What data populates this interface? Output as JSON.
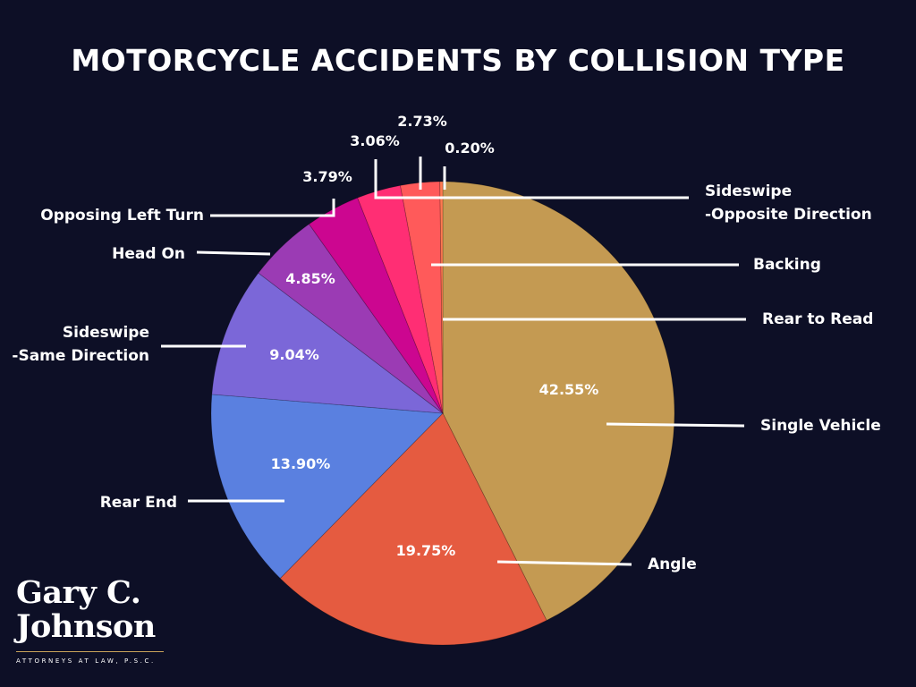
{
  "chart_data": {
    "type": "pie",
    "title": "MOTORCYCLE ACCIDENTS BY COLLISION TYPE",
    "start_angle_deg": 0,
    "direction": "clockwise",
    "slices": [
      {
        "label": "Single Vehicle",
        "value": 42.55,
        "value_label": "42.55%",
        "color": "#c49a52"
      },
      {
        "label": "Angle",
        "value": 19.75,
        "value_label": "19.75%",
        "color": "#e55b40"
      },
      {
        "label": "Rear End",
        "value": 13.9,
        "value_label": "13.90%",
        "color": "#5a80e0"
      },
      {
        "label": "Sideswipe\n-Same Direction",
        "value": 9.04,
        "value_label": "9.04%",
        "color": "#7b67d8"
      },
      {
        "label": "Head On",
        "value": 4.85,
        "value_label": "4.85%",
        "color": "#9b3bb4"
      },
      {
        "label": "Opposing Left Turn",
        "value": 3.79,
        "value_label": "3.79%",
        "color": "#cc0690"
      },
      {
        "label": "Sideswipe\n-Opposite Direction",
        "value": 3.06,
        "value_label": "3.06%",
        "color": "#ff2e74"
      },
      {
        "label": "Backing",
        "value": 2.73,
        "value_label": "2.73%",
        "color": "#ff5a5a"
      },
      {
        "label": "Rear to Read",
        "value": 0.2,
        "value_label": "0.20%",
        "color": "#ff7a50"
      }
    ]
  },
  "logo": {
    "name": "Gary C.\nJohnson",
    "tagline": "ATTORNEYS AT LAW, P.S.C."
  }
}
